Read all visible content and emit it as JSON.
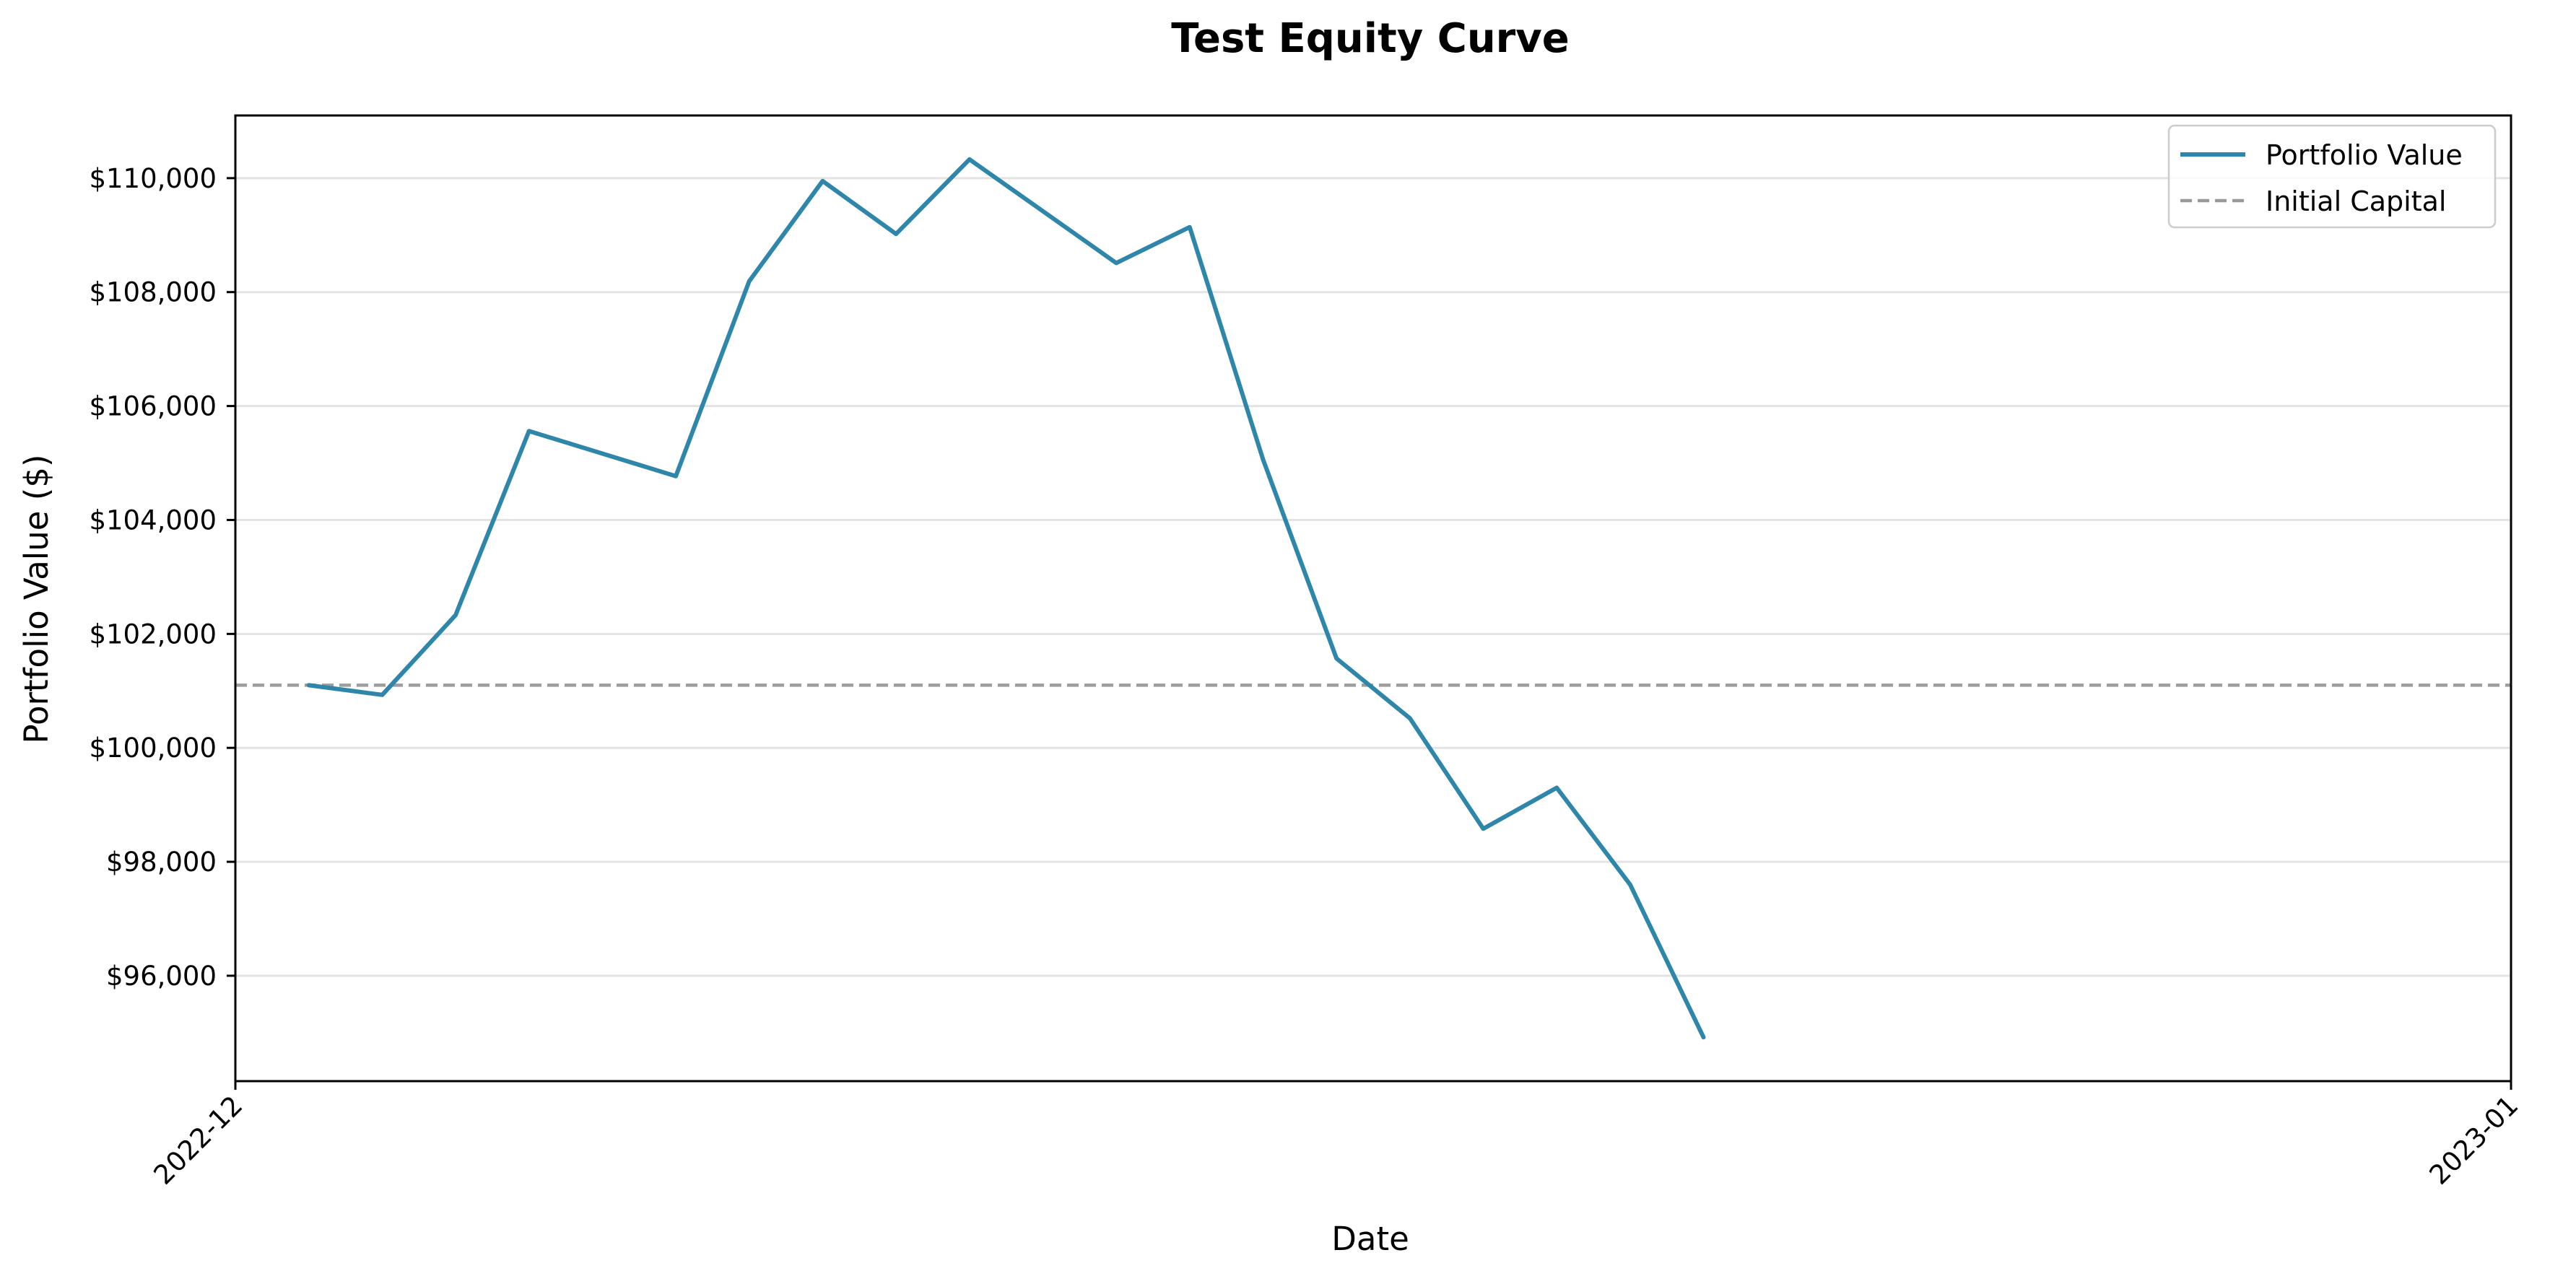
{
  "chart_data": {
    "type": "line",
    "title": "Test Equity Curve",
    "xlabel": "Date",
    "ylabel": "Portfolio Value ($)",
    "x_ticks": [
      "2022-12",
      "2023-01"
    ],
    "y_ticks": [
      "$96,000",
      "$98,000",
      "$100,000",
      "$102,000",
      "$104,000",
      "$106,000",
      "$108,000",
      "$110,000"
    ],
    "y_tick_values": [
      96000,
      98000,
      100000,
      102000,
      104000,
      106000,
      108000,
      110000
    ],
    "ylim": [
      94150,
      111100
    ],
    "xlim": [
      "2022-12-01",
      "2023-01-01"
    ],
    "grid": "horizontal",
    "legend_position": "top-right",
    "series": [
      {
        "name": "Portfolio Value",
        "color": "#2e86ab",
        "style": "solid",
        "points": [
          {
            "x": "2022-12-02",
            "y": 101100
          },
          {
            "x": "2022-12-03",
            "y": 100930
          },
          {
            "x": "2022-12-04",
            "y": 102330
          },
          {
            "x": "2022-12-05",
            "y": 105560
          },
          {
            "x": "2022-12-07",
            "y": 104770
          },
          {
            "x": "2022-12-08",
            "y": 108190
          },
          {
            "x": "2022-12-09",
            "y": 109950
          },
          {
            "x": "2022-12-10",
            "y": 109020
          },
          {
            "x": "2022-12-11",
            "y": 110330
          },
          {
            "x": "2022-12-13",
            "y": 108510
          },
          {
            "x": "2022-12-14",
            "y": 109140
          },
          {
            "x": "2022-12-15",
            "y": 105060
          },
          {
            "x": "2022-12-16",
            "y": 101570
          },
          {
            "x": "2022-12-17",
            "y": 100520
          },
          {
            "x": "2022-12-18",
            "y": 98580
          },
          {
            "x": "2022-12-19",
            "y": 99300
          },
          {
            "x": "2022-12-20",
            "y": 97600
          },
          {
            "x": "2022-12-21",
            "y": 94920
          }
        ]
      },
      {
        "name": "Initial Capital",
        "color": "#999999",
        "style": "dashed",
        "constant_y": 101100
      }
    ]
  }
}
